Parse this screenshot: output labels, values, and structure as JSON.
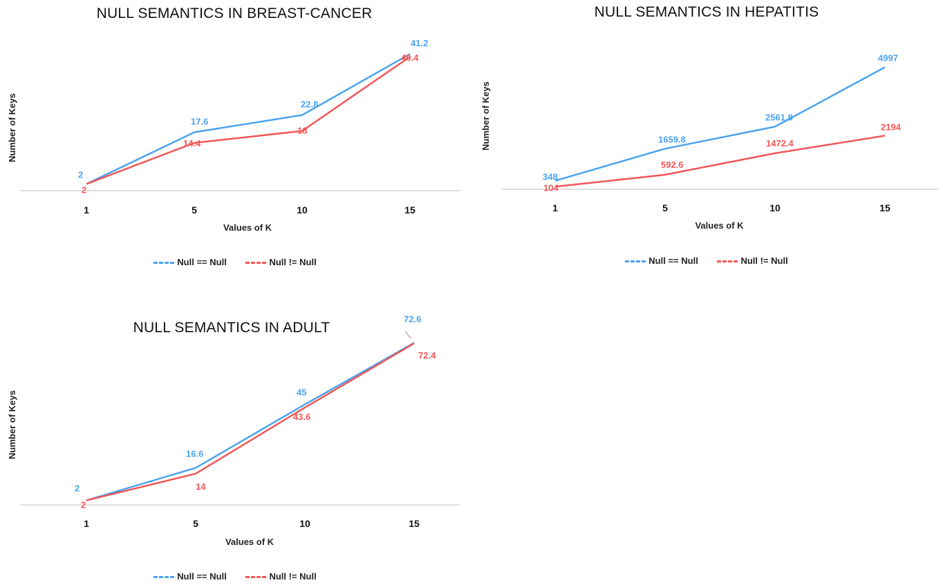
{
  "colors": {
    "null_eq": "#4aa3f0",
    "null_neq": "#f25555",
    "axis": "#bfbfbf"
  },
  "legend": {
    "null_eq": "Null == Null",
    "null_neq": "Null != Null"
  },
  "chart_data": [
    {
      "type": "line",
      "title": "NULL SEMANTICS IN BREAST-CANCER",
      "xlabel": "Values of K",
      "ylabel": "Number of Keys",
      "categories": [
        "1",
        "5",
        "10",
        "15"
      ],
      "ylim": [
        0,
        45
      ],
      "grid": false,
      "legend_position": "bottom",
      "series": [
        {
          "name": "Null == Null",
          "values": [
            2,
            17.6,
            22.8,
            41.2
          ]
        },
        {
          "name": "Null != Null",
          "values": [
            2,
            14.4,
            18,
            40.4
          ]
        }
      ]
    },
    {
      "type": "line",
      "title": "NULL SEMANTICS IN HEPATITIS",
      "xlabel": "Values of K",
      "ylabel": "Number of Keys",
      "categories": [
        "1",
        "5",
        "10",
        "15"
      ],
      "ylim": [
        0,
        5600
      ],
      "grid": false,
      "legend_position": "bottom",
      "series": [
        {
          "name": "Null == Null",
          "values": [
            348,
            1659.8,
            2561.8,
            4997
          ]
        },
        {
          "name": "Null != Null",
          "values": [
            104,
            592.6,
            1472.4,
            2194
          ]
        }
      ]
    },
    {
      "type": "line",
      "title": "NULL SEMANTICS IN ADULT",
      "xlabel": "Values of K",
      "ylabel": "Number of Keys",
      "categories": [
        "1",
        "5",
        "10",
        "15"
      ],
      "ylim": [
        0,
        78
      ],
      "grid": false,
      "legend_position": "bottom",
      "series": [
        {
          "name": "Null == Null",
          "values": [
            2,
            16.6,
            45,
            72.6
          ]
        },
        {
          "name": "Null != Null",
          "values": [
            2,
            14,
            43.6,
            72.4
          ]
        }
      ]
    }
  ]
}
